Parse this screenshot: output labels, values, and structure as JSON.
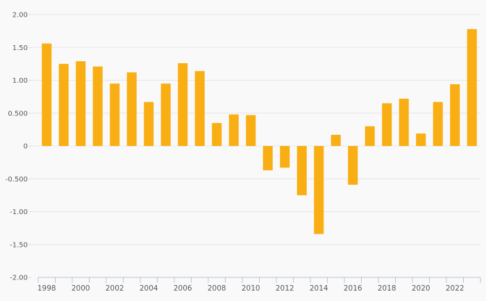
{
  "chart": {
    "background_color": "#f9f9f9",
    "bar_color": "#F9AE13",
    "grid_color": "#e6e6e6",
    "axis_color": "#b9c3d8",
    "tick_stub_color": "#d9d9d9",
    "label_color": "#55585c"
  },
  "chart_data": {
    "type": "bar",
    "title": "",
    "xlabel": "",
    "ylabel": "",
    "categories": [
      "1998",
      "1999",
      "2000",
      "2001",
      "2002",
      "2003",
      "2004",
      "2005",
      "2006",
      "2007",
      "2008",
      "2009",
      "2010",
      "2011",
      "2012",
      "2013",
      "2014",
      "2015",
      "2016",
      "2017",
      "2018",
      "2019",
      "2020",
      "2021",
      "2022",
      "2023"
    ],
    "values": [
      1.56,
      1.25,
      1.29,
      1.21,
      0.95,
      1.12,
      0.67,
      0.95,
      1.26,
      1.14,
      0.35,
      0.48,
      0.47,
      -0.37,
      -0.33,
      -0.75,
      -1.34,
      0.17,
      -0.59,
      0.3,
      0.65,
      0.72,
      0.19,
      0.67,
      0.94,
      1.78
    ],
    "x_tick_labels": [
      "1998",
      "2000",
      "2002",
      "2004",
      "2006",
      "2008",
      "2010",
      "2012",
      "2014",
      "2016",
      "2018",
      "2020",
      "2022"
    ],
    "y_tick_labels": [
      "2.00",
      "1.50",
      "1.00",
      "0.500",
      "0",
      "-0.500",
      "-1.00",
      "-1.50",
      "-2.00"
    ],
    "y_tick_values": [
      2.0,
      1.5,
      1.0,
      0.5,
      0,
      -0.5,
      -1.0,
      -1.5,
      -2.0
    ],
    "ylim": [
      -2.0,
      2.0
    ],
    "grid": "horizontal",
    "legend": "none"
  }
}
